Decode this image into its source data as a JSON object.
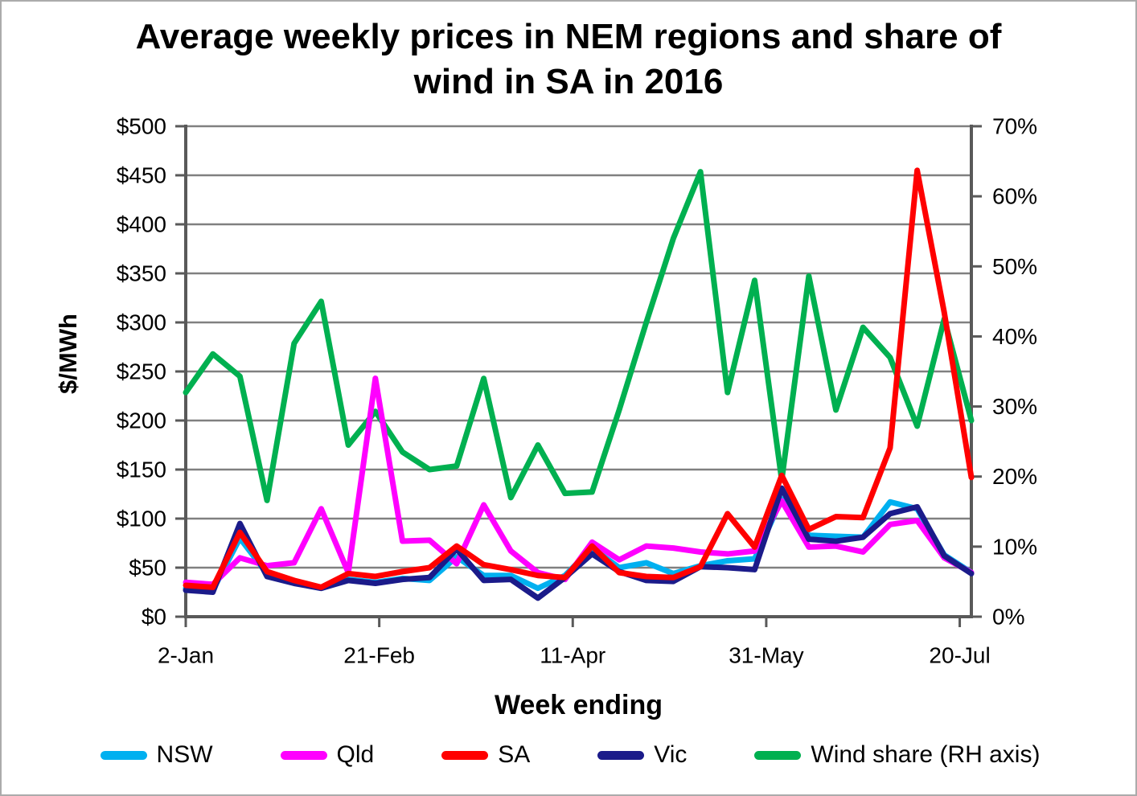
{
  "title": "Average weekly prices in NEM regions and share of wind in SA in 2016",
  "chart_data": {
    "type": "line",
    "title": "Average weekly prices in NEM regions and share of wind in SA in 2016",
    "grid": true,
    "legend_position": "bottom",
    "x_axis": {
      "title": "Week ending",
      "tick_labels": [
        "2-Jan",
        "21-Feb",
        "11-Apr",
        "31-May",
        "20-Jul"
      ],
      "tick_days": [
        0,
        50,
        100,
        150,
        200
      ],
      "span_days": 203,
      "points_are_weekly": true,
      "n_points": 30
    },
    "y_left": {
      "title": "$/MWh",
      "min": 0,
      "max": 500,
      "step": 50,
      "tick_labels": [
        "$0",
        "$50",
        "$100",
        "$150",
        "$200",
        "$250",
        "$300",
        "$350",
        "$400",
        "$450",
        "$500"
      ]
    },
    "y_right": {
      "title": "",
      "min": 0,
      "max": 70,
      "step": 10,
      "tick_labels": [
        "0%",
        "10%",
        "20%",
        "30%",
        "40%",
        "50%",
        "60%",
        "70%"
      ]
    },
    "series": [
      {
        "name": "NSW",
        "axis": "left",
        "color": "#00B0F0",
        "values": [
          29,
          27,
          80,
          44,
          35,
          29,
          38,
          35,
          39,
          37,
          61,
          42,
          42,
          29,
          42,
          70,
          50,
          55,
          44,
          52,
          57,
          59,
          120,
          83,
          82,
          81,
          117,
          110,
          63,
          45
        ]
      },
      {
        "name": "Qld",
        "axis": "left",
        "color": "#FF00FF",
        "values": [
          35,
          33,
          60,
          52,
          55,
          110,
          45,
          243,
          77,
          78,
          54,
          114,
          67,
          45,
          38,
          76,
          58,
          72,
          70,
          66,
          64,
          67,
          118,
          71,
          72,
          66,
          94,
          98,
          60,
          45
        ]
      },
      {
        "name": "SA",
        "axis": "left",
        "color": "#FF0000",
        "values": [
          32,
          30,
          86,
          46,
          37,
          30,
          44,
          41,
          46,
          50,
          72,
          53,
          48,
          42,
          40,
          72,
          45,
          41,
          40,
          51,
          105,
          71,
          144,
          89,
          102,
          101,
          172,
          455,
          310,
          142
        ]
      },
      {
        "name": "Vic",
        "axis": "left",
        "color": "#1B1B8A",
        "values": [
          27,
          25,
          95,
          41,
          34,
          29,
          37,
          34,
          38,
          40,
          69,
          37,
          38,
          19,
          40,
          64,
          46,
          37,
          36,
          51,
          50,
          48,
          131,
          79,
          77,
          81,
          105,
          112,
          62,
          44
        ]
      },
      {
        "name": "Wind share (RH axis)",
        "axis": "right",
        "color": "#00B050",
        "values": [
          32,
          37.5,
          34.3,
          16.6,
          39,
          45,
          24.5,
          29.3,
          23.5,
          21,
          21.5,
          34,
          17,
          24.5,
          17.6,
          17.8,
          29.5,
          42,
          54,
          63.5,
          32,
          48,
          19.5,
          48.6,
          29.5,
          41.3,
          37,
          27.2,
          42.5,
          28
        ]
      }
    ],
    "style": {
      "gridline_color": "#808080",
      "axis_color": "#595959",
      "background": "#FFFFFF"
    }
  }
}
